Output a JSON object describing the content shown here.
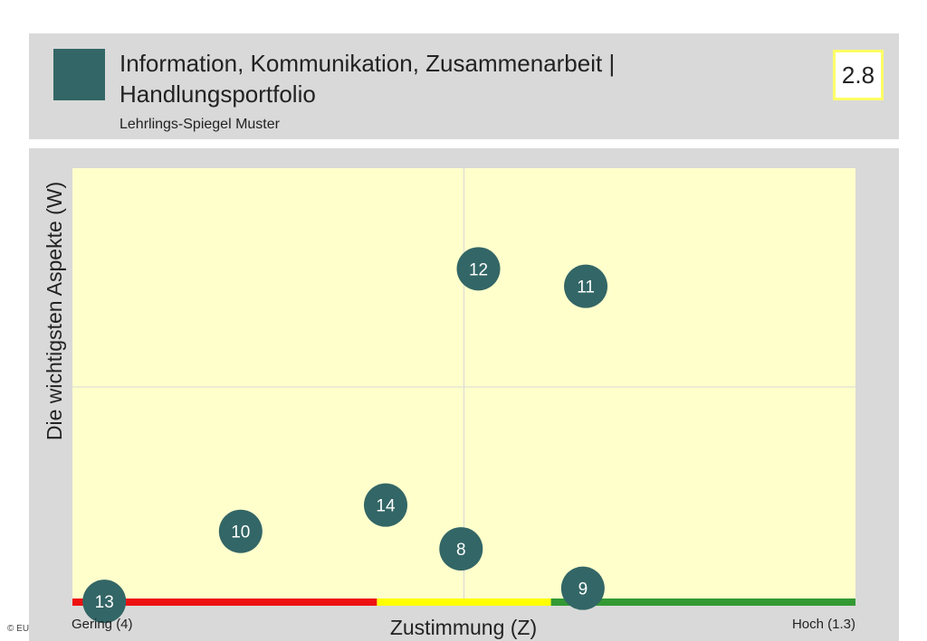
{
  "header": {
    "title_line1": "Information, Kommunikation, Zusammenarbeit  |",
    "title_line2": "Handlungsportfolio",
    "subtitle": "Lehrlings-Spiegel Muster",
    "chapter": "2.8"
  },
  "copyright": "© EU",
  "chart_data": {
    "type": "scatter",
    "title": "",
    "xlabel": "Zustimmung (Z)",
    "ylabel": "Die wichtigsten Aspekte (W)",
    "x_axis_direction": "reversed",
    "xlim": [
      4,
      1.3
    ],
    "ylim": [
      0,
      1
    ],
    "x_low_label": "Gering (4)",
    "x_high_label": "Hoch (1.3)",
    "quadrant_lines": true,
    "points": [
      {
        "label": "12",
        "x": 2.6,
        "y": 0.77
      },
      {
        "label": "11",
        "x": 2.23,
        "y": 0.73
      },
      {
        "label": "14",
        "x": 2.92,
        "y": 0.23
      },
      {
        "label": "10",
        "x": 3.42,
        "y": 0.17
      },
      {
        "label": "8",
        "x": 2.66,
        "y": 0.13
      },
      {
        "label": "9",
        "x": 2.24,
        "y": 0.04
      },
      {
        "label": "13",
        "x": 3.89,
        "y": 0.01
      }
    ],
    "rating_bar": [
      {
        "color": "#ee1111",
        "from": 4.0,
        "to": 2.95
      },
      {
        "color": "#ffff00",
        "from": 2.95,
        "to": 2.35
      },
      {
        "color": "#339933",
        "from": 2.35,
        "to": 1.3
      }
    ],
    "colors": {
      "plot_background": "#ffffcc",
      "marker": "#336666",
      "marker_text": "#ffffff",
      "grid": "#d8d8d8"
    }
  }
}
